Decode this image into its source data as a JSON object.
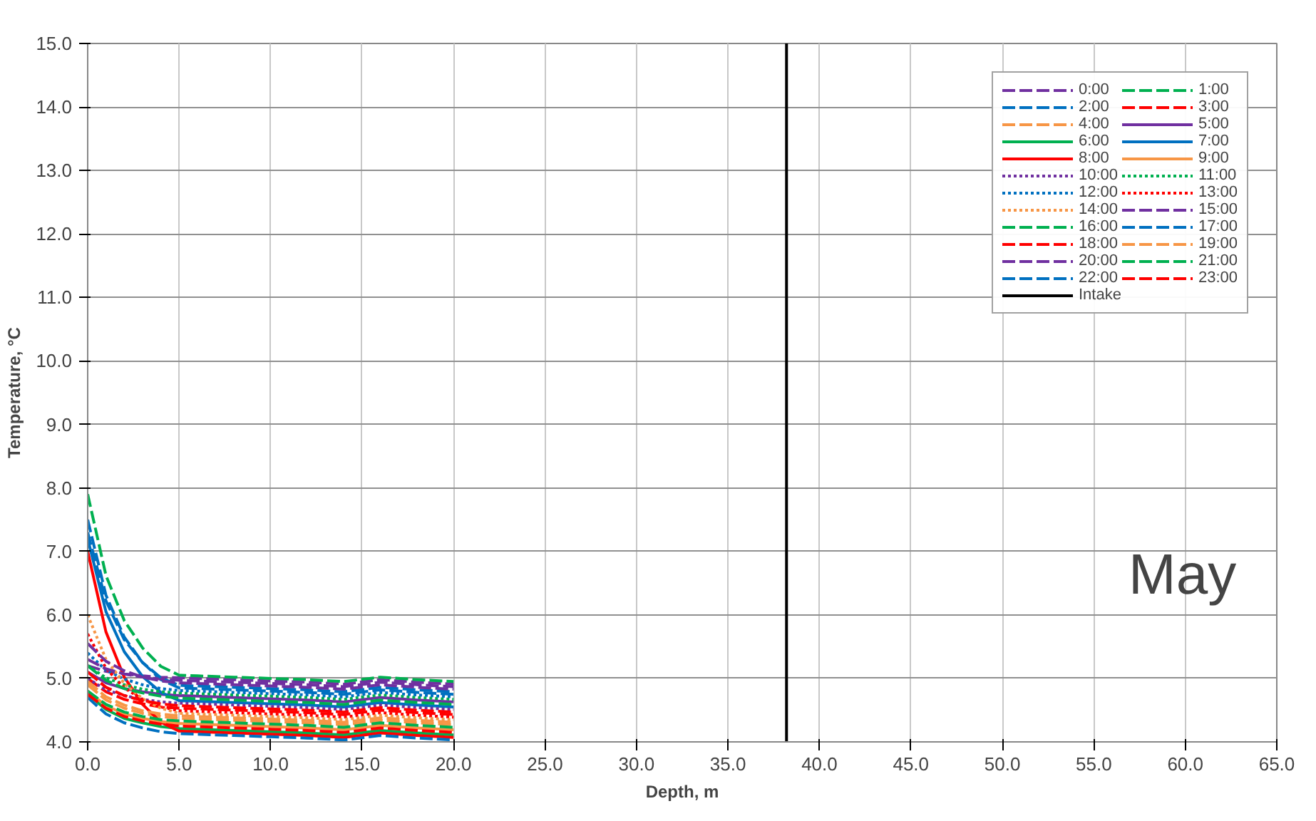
{
  "chart_data": {
    "type": "line",
    "xlabel": "Depth, m",
    "ylabel": "Temperature, °C",
    "x": [
      0,
      1,
      2,
      3,
      4,
      5,
      6,
      8,
      10,
      12,
      14,
      16,
      18,
      20
    ],
    "xlim": [
      0,
      65
    ],
    "ylim": [
      4,
      15
    ],
    "xticks": [
      {
        "value": 0,
        "label": "0.0"
      },
      {
        "value": 5,
        "label": "5.0"
      },
      {
        "value": 10,
        "label": "10.0"
      },
      {
        "value": 15,
        "label": "15.0"
      },
      {
        "value": 20,
        "label": "20.0"
      },
      {
        "value": 25,
        "label": "25.0"
      },
      {
        "value": 30,
        "label": "30.0"
      },
      {
        "value": 35,
        "label": "35.0"
      },
      {
        "value": 40,
        "label": "40.0"
      },
      {
        "value": 45,
        "label": "45.0"
      },
      {
        "value": 50,
        "label": "50.0"
      },
      {
        "value": 55,
        "label": "55.0"
      },
      {
        "value": 60,
        "label": "60.0"
      },
      {
        "value": 65,
        "label": "65.0"
      }
    ],
    "yticks": [
      {
        "value": 4,
        "label": "4.0"
      },
      {
        "value": 5,
        "label": "5.0"
      },
      {
        "value": 6,
        "label": "6.0"
      },
      {
        "value": 7,
        "label": "7.0"
      },
      {
        "value": 8,
        "label": "8.0"
      },
      {
        "value": 9,
        "label": "9.0"
      },
      {
        "value": 10,
        "label": "10.0"
      },
      {
        "value": 11,
        "label": "11.0"
      },
      {
        "value": 12,
        "label": "12.0"
      },
      {
        "value": 13,
        "label": "13.0"
      },
      {
        "value": 14,
        "label": "14.0"
      },
      {
        "value": 15,
        "label": "15.0"
      }
    ],
    "grid": true,
    "legend": "top right",
    "marker": "none",
    "annotations": [
      "May"
    ],
    "series": [
      {
        "name": "0:00",
        "color": "#7030a0",
        "line_style": "dashed",
        "values": [
          5.2,
          5.11,
          5.07,
          5.04,
          5.02,
          5.01,
          5.0,
          4.98,
          4.96,
          4.94,
          4.91,
          4.98,
          4.94,
          4.91
        ]
      },
      {
        "name": "1:00",
        "color": "#00b050",
        "line_style": "dashed",
        "values": [
          7.9,
          6.62,
          5.91,
          5.48,
          5.19,
          5.05,
          5.04,
          5.02,
          5.0,
          4.98,
          4.95,
          5.02,
          4.98,
          4.95
        ]
      },
      {
        "name": "2:00",
        "color": "#0070c0",
        "line_style": "dashed",
        "values": [
          7.5,
          6.31,
          5.65,
          5.25,
          4.98,
          4.85,
          4.84,
          4.82,
          4.8,
          4.78,
          4.75,
          4.82,
          4.78,
          4.75
        ]
      },
      {
        "name": "3:00",
        "color": "#ff0000",
        "line_style": "dashed",
        "values": [
          5.0,
          4.79,
          4.67,
          4.6,
          4.55,
          4.53,
          4.52,
          4.5,
          4.48,
          4.46,
          4.43,
          4.5,
          4.46,
          4.43
        ]
      },
      {
        "name": "4:00",
        "color": "#f79646",
        "line_style": "dashed",
        "values": [
          4.9,
          4.66,
          4.53,
          4.45,
          4.4,
          4.37,
          4.36,
          4.34,
          4.32,
          4.3,
          4.27,
          4.34,
          4.3,
          4.27
        ]
      },
      {
        "name": "5:00",
        "color": "#7030a0",
        "line_style": "solid",
        "values": [
          5.1,
          4.93,
          4.84,
          4.79,
          4.75,
          4.73,
          4.72,
          4.7,
          4.68,
          4.66,
          4.63,
          4.7,
          4.66,
          4.63
        ]
      },
      {
        "name": "6:00",
        "color": "#00b050",
        "line_style": "solid",
        "values": [
          4.75,
          4.51,
          4.37,
          4.3,
          4.24,
          4.21,
          4.2,
          4.18,
          4.16,
          4.14,
          4.11,
          4.18,
          4.14,
          4.11
        ]
      },
      {
        "name": "7:00",
        "color": "#0070c0",
        "line_style": "solid",
        "values": [
          7.2,
          6.05,
          5.42,
          5.03,
          4.78,
          4.65,
          4.64,
          4.62,
          4.6,
          4.58,
          4.55,
          4.62,
          4.58,
          4.55
        ]
      },
      {
        "name": "8:00",
        "color": "#ff0000",
        "line_style": "solid",
        "values": [
          7.0,
          5.73,
          5.02,
          4.59,
          4.31,
          4.17,
          4.16,
          4.14,
          4.12,
          4.1,
          4.07,
          4.14,
          4.1,
          4.07
        ]
      },
      {
        "name": "9:00",
        "color": "#f79646",
        "line_style": "solid",
        "values": [
          4.8,
          4.57,
          4.44,
          4.37,
          4.32,
          4.29,
          4.28,
          4.26,
          4.24,
          4.22,
          4.19,
          4.26,
          4.22,
          4.19
        ]
      },
      {
        "name": "10:00",
        "color": "#7030a0",
        "line_style": "dotted",
        "values": [
          5.0,
          4.82,
          4.73,
          4.67,
          4.63,
          4.61,
          4.6,
          4.58,
          4.56,
          4.54,
          4.51,
          4.58,
          4.54,
          4.51
        ]
      },
      {
        "name": "11:00",
        "color": "#00b050",
        "line_style": "dotted",
        "values": [
          5.2,
          5.01,
          4.9,
          4.83,
          4.79,
          4.77,
          4.76,
          4.74,
          4.72,
          4.7,
          4.67,
          4.74,
          4.7,
          4.67
        ]
      },
      {
        "name": "12:00",
        "color": "#0070c0",
        "line_style": "dotted",
        "values": [
          5.4,
          5.13,
          4.99,
          4.9,
          4.84,
          4.81,
          4.8,
          4.78,
          4.76,
          4.74,
          4.71,
          4.78,
          4.74,
          4.71
        ]
      },
      {
        "name": "13:00",
        "color": "#ff0000",
        "line_style": "dotted",
        "values": [
          5.7,
          5.16,
          4.85,
          4.67,
          4.55,
          4.49,
          4.48,
          4.46,
          4.44,
          4.42,
          4.39,
          4.46,
          4.42,
          4.39
        ]
      },
      {
        "name": "14:00",
        "color": "#f79646",
        "line_style": "dotted",
        "values": [
          6.0,
          5.3,
          4.92,
          4.68,
          4.53,
          4.45,
          4.44,
          4.42,
          4.4,
          4.38,
          4.35,
          4.42,
          4.38,
          4.35
        ]
      },
      {
        "name": "15:00",
        "color": "#7030a0",
        "line_style": "dashed",
        "values": [
          5.3,
          5.15,
          5.07,
          5.02,
          4.99,
          4.97,
          4.96,
          4.94,
          4.92,
          4.9,
          4.87,
          4.94,
          4.9,
          4.87
        ]
      },
      {
        "name": "16:00",
        "color": "#00b050",
        "line_style": "dashed",
        "values": [
          5.2,
          4.97,
          4.84,
          4.77,
          4.72,
          4.69,
          4.68,
          4.66,
          4.64,
          4.62,
          4.59,
          4.66,
          4.62,
          4.59
        ]
      },
      {
        "name": "17:00",
        "color": "#0070c0",
        "line_style": "dashed",
        "values": [
          7.3,
          6.22,
          5.61,
          5.25,
          5.01,
          4.89,
          4.88,
          4.86,
          4.84,
          4.82,
          4.79,
          4.86,
          4.82,
          4.79
        ]
      },
      {
        "name": "18:00",
        "color": "#ff0000",
        "line_style": "dashed",
        "values": [
          5.1,
          4.86,
          4.73,
          4.65,
          4.6,
          4.57,
          4.56,
          4.54,
          4.52,
          4.5,
          4.47,
          4.54,
          4.5,
          4.47
        ]
      },
      {
        "name": "19:00",
        "color": "#f79646",
        "line_style": "dashed",
        "values": [
          4.95,
          4.71,
          4.58,
          4.49,
          4.44,
          4.41,
          4.4,
          4.38,
          4.36,
          4.34,
          4.31,
          4.38,
          4.34,
          4.31
        ]
      },
      {
        "name": "20:00",
        "color": "#7030a0",
        "line_style": "dashed",
        "values": [
          5.55,
          5.27,
          5.12,
          5.02,
          4.96,
          4.93,
          4.92,
          4.9,
          4.88,
          4.86,
          4.83,
          4.9,
          4.86,
          4.83
        ]
      },
      {
        "name": "21:00",
        "color": "#00b050",
        "line_style": "dashed",
        "values": [
          4.8,
          4.59,
          4.47,
          4.4,
          4.35,
          4.33,
          4.32,
          4.3,
          4.28,
          4.26,
          4.23,
          4.3,
          4.26,
          4.23
        ]
      },
      {
        "name": "22:00",
        "color": "#0070c0",
        "line_style": "dashed",
        "values": [
          4.7,
          4.44,
          4.3,
          4.22,
          4.16,
          4.13,
          4.12,
          4.1,
          4.08,
          4.06,
          4.03,
          4.1,
          4.06,
          4.03
        ]
      },
      {
        "name": "23:00",
        "color": "#ff0000",
        "line_style": "dashed",
        "values": [
          4.75,
          4.53,
          4.4,
          4.33,
          4.28,
          4.25,
          4.24,
          4.22,
          4.2,
          4.18,
          4.15,
          4.22,
          4.18,
          4.15
        ]
      },
      {
        "name": "Intake",
        "color": "#000000",
        "line_style": "solid",
        "x": [
          38.2,
          38.2
        ],
        "values": [
          4,
          15
        ]
      }
    ]
  }
}
